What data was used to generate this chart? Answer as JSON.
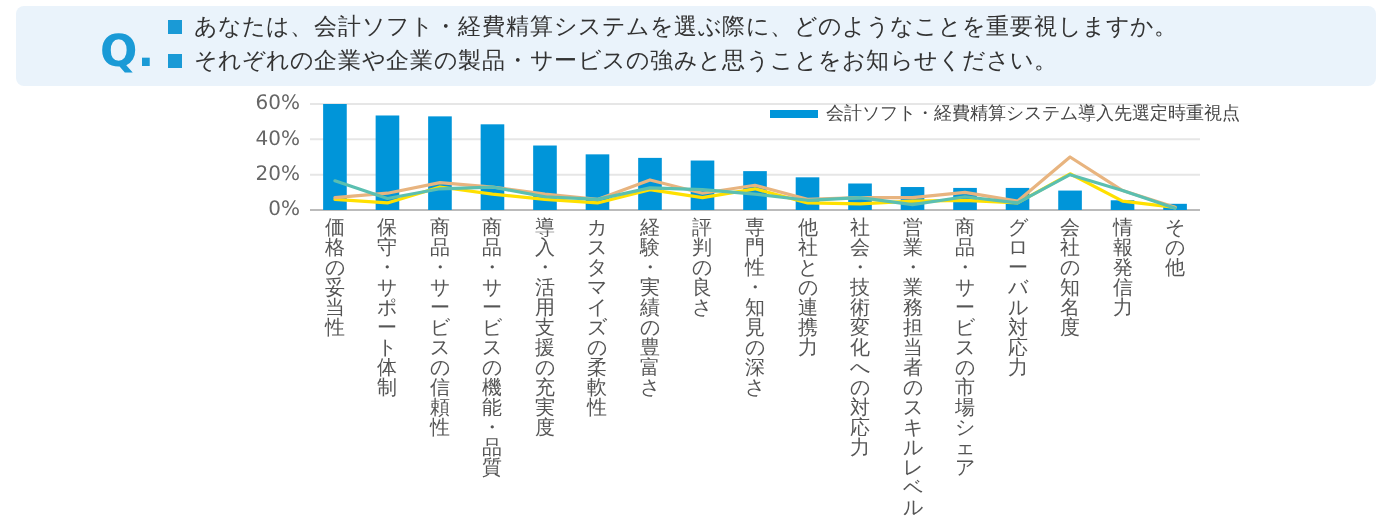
{
  "chart_data": {
    "type": "bar",
    "title": "あなたは、会計ソフト・経費精算システムを選ぶ際に、どのようなことを重要視しますか。",
    "subtitle": "それぞれの企業や企業の製品・サービスの強みと思うことをお知らせください。",
    "annotations": [
      "Q."
    ],
    "categories": [
      "価格の妥当性",
      "保守・サポート体制",
      "商品・サービスの信頼性",
      "商品・サービスの機能・品質",
      "導入・活用支援の充実度",
      "カスタマイズの柔軟性",
      "経験・実績の豊富さ",
      "評判の良さ",
      "専門性・知見の深さ",
      "他社との連携力",
      "社会・技術変化への対応力",
      "営業・業務担当者のスキルレベル",
      "商品・サービスの市場シェア",
      "グローバル対応力",
      "会社の知名度",
      "情報発信力",
      "その他"
    ],
    "series": [
      {
        "name": "会計ソフト・経費精算システム導入先選定時重視点",
        "color": "#0095d9",
        "values": [
          60,
          53.5,
          53,
          48.5,
          36.5,
          31.5,
          29.5,
          28,
          22,
          18.5,
          15,
          13,
          12.5,
          12.5,
          11,
          5.5,
          3.5
        ]
      },
      {
        "type": "line",
        "color": "#ffe000",
        "values": [
          6,
          4,
          13,
          9,
          6,
          4,
          11.5,
          7,
          12,
          4,
          3.5,
          5,
          5.5,
          4,
          20.5,
          5,
          1.5
        ]
      },
      {
        "type": "line",
        "color": "#e8b47f",
        "values": [
          7,
          9.5,
          15.5,
          13,
          9,
          6,
          17,
          9.5,
          14,
          6,
          7,
          7,
          10,
          5,
          30,
          11,
          1.5
        ]
      },
      {
        "type": "line",
        "color": "#5bbfb0",
        "values": [
          16.5,
          6.5,
          12,
          13,
          7.5,
          6,
          12.5,
          11.5,
          9,
          5.5,
          7,
          3,
          7.5,
          4,
          20,
          11,
          1
        ]
      }
    ],
    "ylim": [
      0,
      60
    ],
    "yticks": [
      {
        "value": 0,
        "label": "0%"
      },
      {
        "value": 20,
        "label": "20%"
      },
      {
        "value": 40,
        "label": "40%"
      },
      {
        "value": 60,
        "label": "60%"
      }
    ],
    "grid": "y",
    "legend": "top right"
  }
}
